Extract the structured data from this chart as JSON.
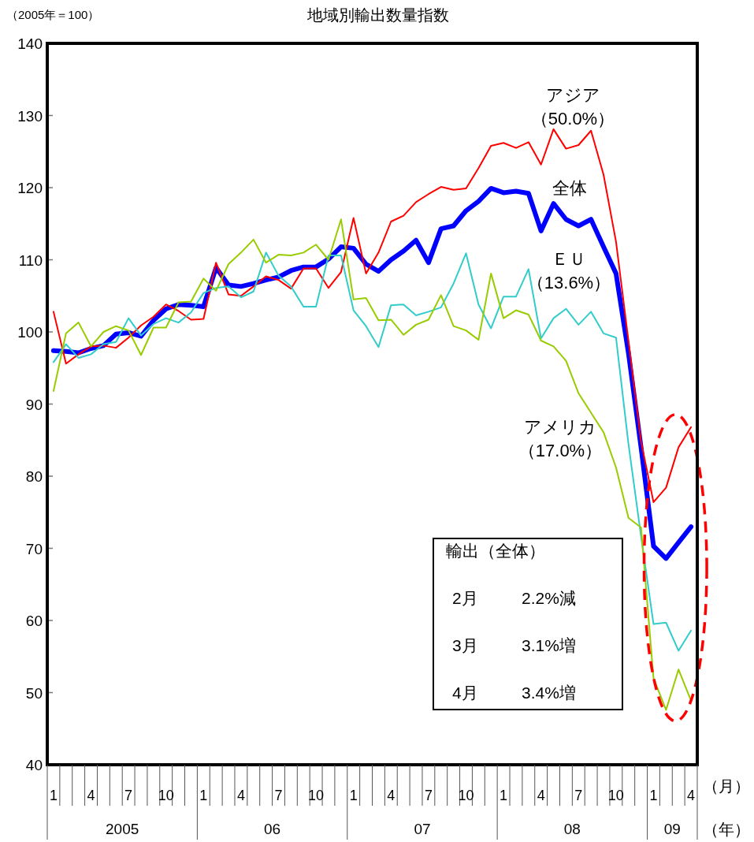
{
  "chart_data": {
    "type": "line",
    "title": "地域別輸出数量指数",
    "ylabel": "（2005年＝100）",
    "categories": [
      "1",
      null,
      null,
      "4",
      null,
      null,
      "7",
      null,
      null,
      "10",
      null,
      null,
      "1",
      null,
      null,
      "4",
      null,
      null,
      "7",
      null,
      null,
      "10",
      null,
      null,
      "1",
      null,
      null,
      "4",
      null,
      null,
      "7",
      null,
      null,
      "10",
      null,
      null,
      "1",
      null,
      null,
      "4",
      null,
      null,
      "7",
      null,
      null,
      "10",
      null,
      null,
      "1",
      null,
      null,
      "4"
    ],
    "ylim": [
      40,
      140
    ],
    "yticks": [
      40,
      50,
      60,
      70,
      80,
      90,
      100,
      110,
      120,
      130,
      140
    ],
    "grid": false,
    "marker": "none",
    "line_style": "solid",
    "series": [
      {
        "name": "全体",
        "color": "#0000ff",
        "values": [
          97.4,
          97.3,
          97.1,
          97.7,
          98.1,
          99.7,
          99.9,
          99.4,
          101.6,
          103.2,
          103.8,
          103.7,
          103.5,
          108.9,
          106.5,
          106.3,
          106.7,
          107.2,
          107.6,
          108.5,
          109.0,
          109.0,
          110.1,
          111.8,
          111.6,
          109.4,
          108.4,
          110.0,
          111.2,
          112.7,
          109.6,
          114.3,
          114.7,
          116.8,
          118.1,
          119.9,
          119.3,
          119.5,
          119.2,
          114.0,
          117.8,
          115.6,
          114.7,
          115.6,
          111.8,
          108.1,
          97.0,
          84.0,
          70.3,
          68.6,
          70.8,
          73.0
        ]
      },
      {
        "name": "アジア（50.0%）",
        "color": "#ff0000",
        "values": [
          102.8,
          95.6,
          96.9,
          98.0,
          98.1,
          97.8,
          99.2,
          100.9,
          102.1,
          103.8,
          102.9,
          101.7,
          101.8,
          109.6,
          105.2,
          105.0,
          106.3,
          107.7,
          107.2,
          106.0,
          108.8,
          108.8,
          106.1,
          108.3,
          115.8,
          108.1,
          111.0,
          115.3,
          116.1,
          118.0,
          119.1,
          120.1,
          119.7,
          119.9,
          122.7,
          125.8,
          126.2,
          125.5,
          126.3,
          123.2,
          128.1,
          125.4,
          125.9,
          127.9,
          121.8,
          112.5,
          98.7,
          84.8,
          76.4,
          78.4,
          84.0,
          86.8
        ]
      },
      {
        "name": "ＥＵ（13.6%）",
        "color": "#33cccc",
        "values": [
          95.8,
          98.3,
          96.4,
          96.9,
          98.3,
          98.6,
          101.9,
          99.5,
          101.1,
          101.9,
          101.3,
          102.7,
          105.4,
          106.1,
          106.3,
          104.8,
          105.6,
          111.0,
          107.8,
          106.3,
          103.5,
          103.5,
          110.6,
          110.6,
          103.0,
          100.8,
          97.9,
          103.7,
          103.8,
          102.3,
          102.8,
          103.4,
          106.7,
          110.9,
          103.8,
          100.5,
          104.9,
          104.9,
          108.7,
          99.1,
          101.9,
          103.2,
          101.0,
          102.8,
          99.8,
          99.2,
          84.4,
          71.7,
          59.5,
          59.7,
          55.8,
          58.6
        ]
      },
      {
        "name": "アメリカ（17.0%）",
        "color": "#99cc00",
        "values": [
          91.8,
          99.8,
          101.3,
          98.0,
          100.0,
          100.8,
          100.2,
          96.8,
          100.6,
          100.6,
          104.1,
          104.2,
          107.4,
          105.7,
          109.4,
          111.0,
          112.8,
          109.6,
          110.7,
          110.6,
          111.0,
          112.1,
          110.0,
          115.6,
          104.5,
          104.7,
          101.6,
          101.7,
          99.6,
          101.0,
          101.7,
          105.1,
          100.8,
          100.2,
          98.9,
          108.1,
          101.9,
          103.0,
          102.4,
          98.8,
          98.0,
          96.0,
          91.5,
          88.8,
          86.1,
          81.2,
          74.2,
          72.9,
          52.0,
          47.6,
          53.2,
          48.9
        ]
      }
    ],
    "annotations": [
      "2005",
      "06",
      "07",
      "08",
      "09",
      "（月）",
      "（年）",
      "輸出（全体）",
      "2月",
      "2.2%減",
      "3月",
      "3.1%増",
      "4月",
      "3.4%増"
    ]
  }
}
